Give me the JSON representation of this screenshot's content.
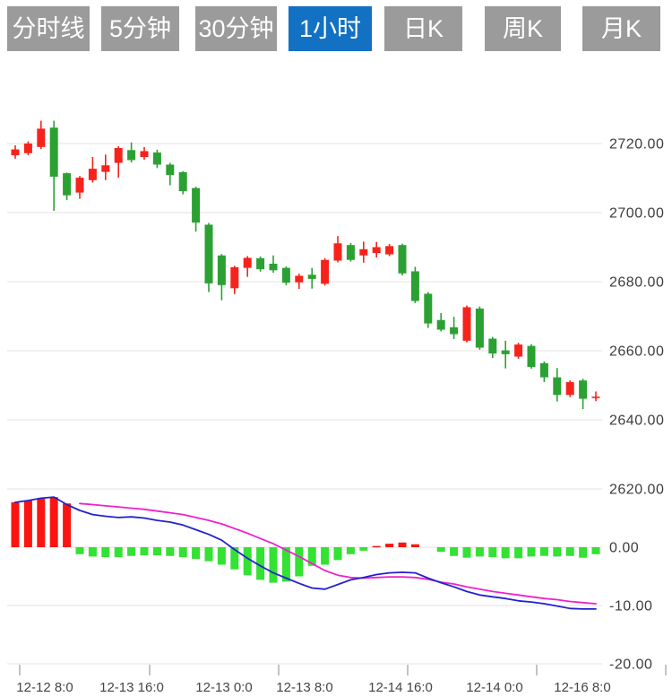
{
  "tabs": {
    "items": [
      {
        "label": "分时线",
        "active": false
      },
      {
        "label": "5分钟",
        "active": false
      },
      {
        "label": "30分钟",
        "active": false
      },
      {
        "label": "1小时",
        "active": true
      },
      {
        "label": "日K",
        "active": false
      },
      {
        "label": "周K",
        "active": false
      },
      {
        "label": "月K",
        "active": false
      }
    ]
  },
  "colors": {
    "tab_active_bg": "#1371C3",
    "tab_inactive_bg": "#9B9B9B",
    "tab_text": "#FFFFFF",
    "candle_up": "#F6231C",
    "candle_down": "#2BA133",
    "macd_bar_up": "#FB1510",
    "macd_bar_down": "#33E233",
    "dif_line": "#2222CC",
    "dea_line": "#EE21CE",
    "grid": "#E3E3E3",
    "axis_text": "#3C3C3C",
    "x_axis_text": "#454545",
    "tick": "#A9B1B9"
  },
  "chart_data": {
    "type": "candlestick",
    "title": "",
    "timeframe_selected": "1小时",
    "x_axis_labels": [
      "12-12 8:0",
      "12-13 16:0",
      "12-13 0:0",
      "12-13 8:0",
      "12-14 16:0",
      "12-14 0:0",
      "12-16 8:0"
    ],
    "price_axis": {
      "labels": [
        "2720.00",
        "2700.00",
        "2680.00",
        "2660.00",
        "2640.00",
        "2620.00"
      ],
      "values": [
        2720,
        2700,
        2680,
        2660,
        2640,
        2620
      ],
      "ylim": [
        2618,
        2740
      ]
    },
    "macd_axis": {
      "labels": [
        "0.00",
        "-10.00",
        "-20.00"
      ],
      "values": [
        0,
        -10,
        -20
      ],
      "ylim": [
        -21,
        9.8
      ]
    },
    "grid": "horizontal-only",
    "legend": "none",
    "candles_ohlc": [
      [
        2716.6,
        2719.5,
        2715.6,
        2718.3
      ],
      [
        2717.2,
        2720.6,
        2716.6,
        2720.0
      ],
      [
        2719.0,
        2726.6,
        2718.4,
        2724.3
      ],
      [
        2724.6,
        2726.6,
        2700.5,
        2710.4
      ],
      [
        2711.4,
        2711.6,
        2703.6,
        2705.0
      ],
      [
        2705.8,
        2710.6,
        2704.0,
        2710.1
      ],
      [
        2709.4,
        2716.1,
        2708.7,
        2712.7
      ],
      [
        2711.8,
        2716.8,
        2709.4,
        2713.7
      ],
      [
        2714.4,
        2719.2,
        2710.1,
        2718.7
      ],
      [
        2718.1,
        2720.3,
        2714.5,
        2715.2
      ],
      [
        2716.1,
        2719.0,
        2715.3,
        2717.8
      ],
      [
        2717.4,
        2718.2,
        2712.9,
        2713.9
      ],
      [
        2713.9,
        2714.4,
        2707.9,
        2710.9
      ],
      [
        2711.7,
        2712.0,
        2705.3,
        2706.2
      ],
      [
        2707.1,
        2707.5,
        2694.5,
        2697.1
      ],
      [
        2696.5,
        2697.0,
        2677.0,
        2679.5
      ],
      [
        2687.6,
        2688.0,
        2674.6,
        2679.0
      ],
      [
        2678.1,
        2684.6,
        2676.4,
        2684.2
      ],
      [
        2684.0,
        2687.4,
        2681.4,
        2686.9
      ],
      [
        2686.8,
        2687.3,
        2682.9,
        2683.6
      ],
      [
        2685.2,
        2687.6,
        2682.6,
        2683.3
      ],
      [
        2684.0,
        2684.4,
        2679.0,
        2679.7
      ],
      [
        2679.8,
        2682.3,
        2677.9,
        2681.7
      ],
      [
        2682.0,
        2684.0,
        2678.0,
        2680.8
      ],
      [
        2679.4,
        2686.8,
        2678.9,
        2686.3
      ],
      [
        2686.1,
        2693.2,
        2685.6,
        2691.1
      ],
      [
        2690.6,
        2691.2,
        2685.8,
        2686.3
      ],
      [
        2687.6,
        2691.6,
        2685.5,
        2689.4
      ],
      [
        2688.3,
        2691.5,
        2687.0,
        2690.0
      ],
      [
        2687.9,
        2690.9,
        2687.4,
        2690.3
      ],
      [
        2690.6,
        2691.0,
        2681.8,
        2682.4
      ],
      [
        2683.0,
        2684.3,
        2673.8,
        2674.4
      ],
      [
        2676.5,
        2677.0,
        2666.6,
        2667.9
      ],
      [
        2668.9,
        2670.9,
        2665.6,
        2666.1
      ],
      [
        2666.8,
        2669.8,
        2663.4,
        2664.8
      ],
      [
        2662.9,
        2673.1,
        2662.4,
        2672.6
      ],
      [
        2672.2,
        2672.8,
        2660.3,
        2660.9
      ],
      [
        2663.5,
        2664.0,
        2657.9,
        2659.2
      ],
      [
        2660.1,
        2662.9,
        2654.9,
        2659.0
      ],
      [
        2658.3,
        2662.3,
        2657.7,
        2661.8
      ],
      [
        2661.4,
        2661.9,
        2654.8,
        2655.3
      ],
      [
        2656.4,
        2656.9,
        2650.9,
        2652.3
      ],
      [
        2652.3,
        2655.0,
        2645.3,
        2647.2
      ],
      [
        2647.2,
        2651.4,
        2646.6,
        2650.9
      ],
      [
        2651.4,
        2651.9,
        2643.1,
        2646.1
      ],
      [
        2646.4,
        2648.2,
        2645.4,
        2646.7
      ]
    ],
    "macd": {
      "histogram": [
        7.7,
        8.0,
        8.3,
        8.6,
        7.5,
        -1.2,
        -1.6,
        -1.7,
        -1.7,
        -1.5,
        -1.4,
        -1.4,
        -1.5,
        -1.7,
        -2.0,
        -2.4,
        -3.0,
        -3.8,
        -4.8,
        -5.6,
        -6.1,
        -5.9,
        -5.0,
        -3.2,
        -3.0,
        -2.2,
        -1.2,
        -0.6,
        0.2,
        0.6,
        0.8,
        0.5,
        0.1,
        -0.8,
        -1.5,
        -1.8,
        -1.6,
        -1.7,
        -1.9,
        -1.9,
        -1.6,
        -1.5,
        -1.6,
        -1.5,
        -1.8,
        -1.2
      ],
      "dif": [
        7.7,
        8.0,
        8.4,
        8.6,
        7.3,
        6.3,
        5.6,
        5.3,
        5.1,
        5.2,
        5.0,
        4.6,
        4.3,
        3.8,
        3.0,
        2.2,
        1.2,
        -0.4,
        -1.9,
        -3.2,
        -4.4,
        -5.3,
        -6.2,
        -7.0,
        -7.2,
        -6.4,
        -5.6,
        -5.2,
        -4.7,
        -4.4,
        -4.3,
        -4.4,
        -5.3,
        -6.1,
        -6.8,
        -7.6,
        -8.2,
        -8.5,
        -8.8,
        -9.2,
        -9.4,
        -9.7,
        -10.1,
        -10.5,
        -10.6,
        -10.6
      ],
      "dea": [
        null,
        null,
        null,
        null,
        null,
        7.5,
        7.3,
        7.1,
        6.9,
        6.7,
        6.5,
        6.2,
        5.9,
        5.6,
        5.1,
        4.6,
        4.0,
        3.2,
        2.4,
        1.5,
        0.6,
        -0.5,
        -1.6,
        -2.8,
        -4.0,
        -4.8,
        -5.2,
        -5.3,
        -5.2,
        -5.1,
        -5.1,
        -5.2,
        -5.5,
        -6.0,
        -6.3,
        -6.8,
        -7.2,
        -7.6,
        -7.9,
        -8.2,
        -8.5,
        -8.8,
        -9.0,
        -9.3,
        -9.5,
        -9.7
      ]
    }
  }
}
